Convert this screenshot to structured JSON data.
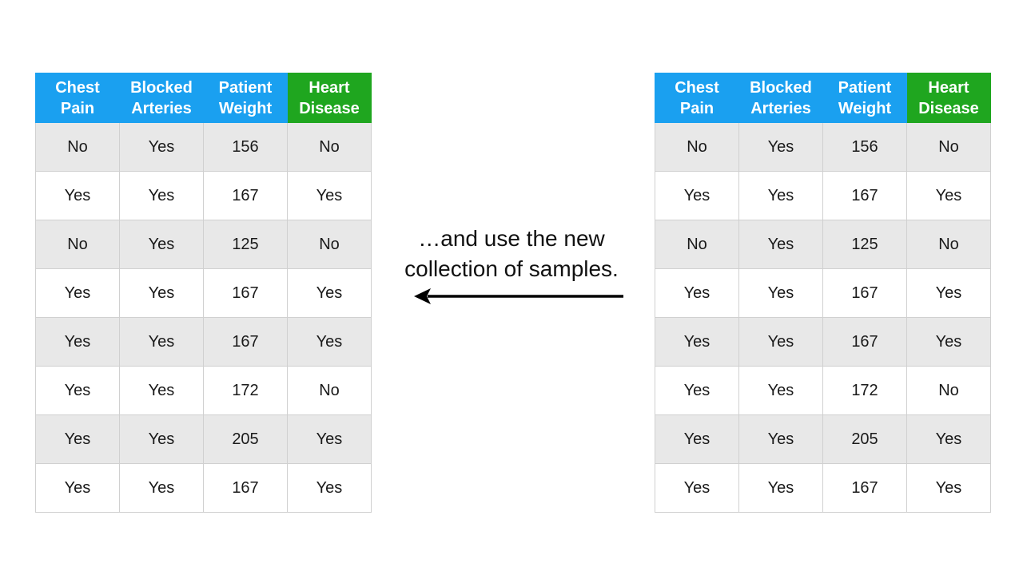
{
  "caption": {
    "line1": "…and use the new",
    "line2": "collection of samples."
  },
  "colors": {
    "header_blue": "#1aa0f0",
    "header_green": "#1fa61f",
    "row_shade": "#e8e8e8"
  },
  "tables": [
    {
      "headers": [
        {
          "line1": "Chest",
          "line2": "Pain"
        },
        {
          "line1": "Blocked",
          "line2": "Arteries"
        },
        {
          "line1": "Patient",
          "line2": "Weight"
        },
        {
          "line1": "Heart",
          "line2": "Disease"
        }
      ],
      "rows": [
        [
          "No",
          "Yes",
          "156",
          "No"
        ],
        [
          "Yes",
          "Yes",
          "167",
          "Yes"
        ],
        [
          "No",
          "Yes",
          "125",
          "No"
        ],
        [
          "Yes",
          "Yes",
          "167",
          "Yes"
        ],
        [
          "Yes",
          "Yes",
          "167",
          "Yes"
        ],
        [
          "Yes",
          "Yes",
          "172",
          "No"
        ],
        [
          "Yes",
          "Yes",
          "205",
          "Yes"
        ],
        [
          "Yes",
          "Yes",
          "167",
          "Yes"
        ]
      ]
    },
    {
      "headers": [
        {
          "line1": "Chest",
          "line2": "Pain"
        },
        {
          "line1": "Blocked",
          "line2": "Arteries"
        },
        {
          "line1": "Patient",
          "line2": "Weight"
        },
        {
          "line1": "Heart",
          "line2": "Disease"
        }
      ],
      "rows": [
        [
          "No",
          "Yes",
          "156",
          "No"
        ],
        [
          "Yes",
          "Yes",
          "167",
          "Yes"
        ],
        [
          "No",
          "Yes",
          "125",
          "No"
        ],
        [
          "Yes",
          "Yes",
          "167",
          "Yes"
        ],
        [
          "Yes",
          "Yes",
          "167",
          "Yes"
        ],
        [
          "Yes",
          "Yes",
          "172",
          "No"
        ],
        [
          "Yes",
          "Yes",
          "205",
          "Yes"
        ],
        [
          "Yes",
          "Yes",
          "167",
          "Yes"
        ]
      ]
    }
  ]
}
